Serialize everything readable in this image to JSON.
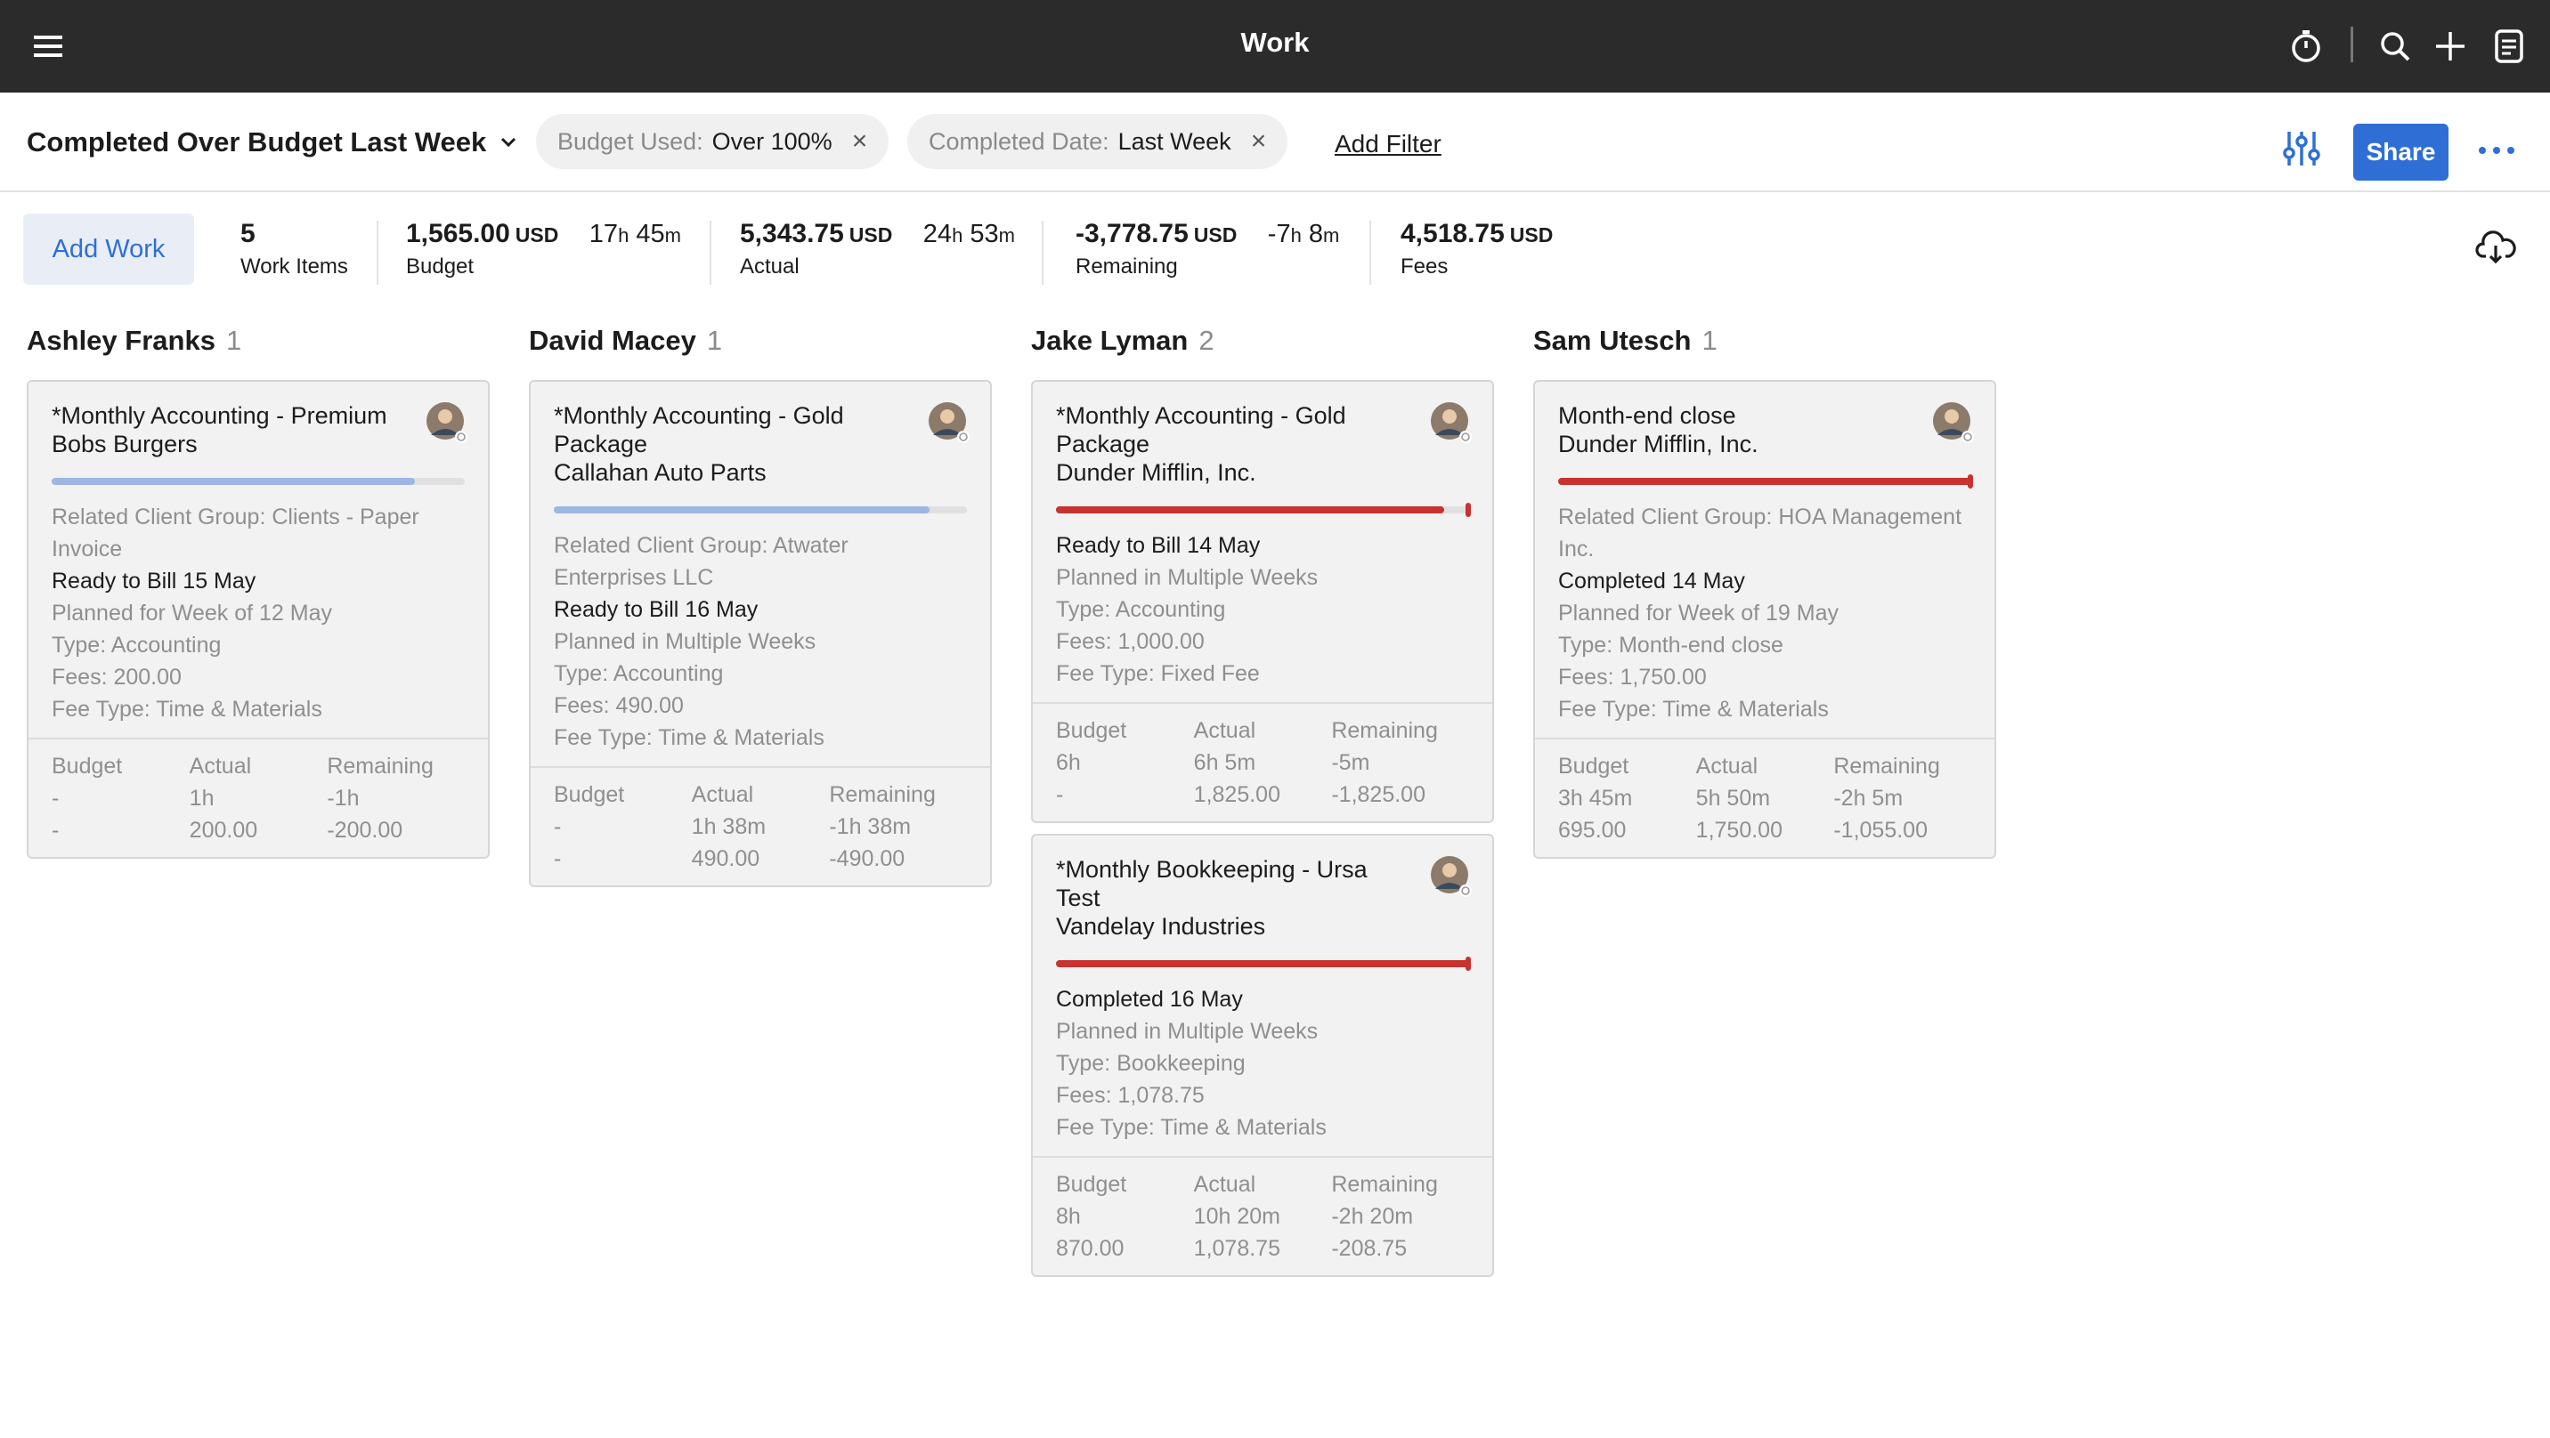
{
  "topbar": {
    "title": "Work",
    "icons": [
      "menu-icon",
      "timer-icon",
      "search-icon",
      "plus-icon",
      "notes-icon"
    ]
  },
  "filters": {
    "view_title": "Completed Over Budget Last Week",
    "chips": [
      {
        "key": "Budget Used:",
        "value": "Over 100%",
        "remove": "×"
      },
      {
        "key": "Completed Date:",
        "value": "Last Week",
        "remove": "×"
      }
    ],
    "add_filter": "Add Filter",
    "share": "Share"
  },
  "summary": {
    "add_work": "Add Work",
    "work_items": {
      "value": "5",
      "label": "Work Items"
    },
    "budget": {
      "value": "1,565.00",
      "currency": "USD",
      "h": "17",
      "m": "45",
      "label": "Budget"
    },
    "actual": {
      "value": "5,343.75",
      "currency": "USD",
      "h": "24",
      "m": "53",
      "label": "Actual"
    },
    "remaining": {
      "value": "-3,778.75",
      "currency": "USD",
      "h": "-7",
      "m": "8",
      "label": "Remaining"
    },
    "fees": {
      "value": "4,518.75",
      "currency": "USD",
      "label": "Fees"
    },
    "unit_h": "h",
    "unit_m": "m"
  },
  "columns": [
    {
      "name": "Ashley Franks",
      "count": "1",
      "cards": [
        {
          "title": "*Monthly Accounting - Premium",
          "client": "Bobs Burgers",
          "bar_color": "#9db6e3",
          "bar_fraction": 0.88,
          "bar_tick": false,
          "lines": [
            {
              "text": "Related Client Group: Clients - Paper Invoice",
              "style": "muted"
            },
            {
              "text": "Ready to Bill 15 May",
              "style": "dark"
            },
            {
              "text": "Planned for Week of 12 May",
              "style": "muted"
            },
            {
              "text": "Type: Accounting",
              "style": "muted"
            },
            {
              "text": "Fees: 200.00",
              "style": "muted"
            },
            {
              "text": "Fee Type: Time & Materials",
              "style": "muted"
            }
          ],
          "foot": [
            [
              "Budget",
              "-",
              "-"
            ],
            [
              "Actual",
              "1h",
              "200.00"
            ],
            [
              "Remaining",
              "-1h",
              "-200.00"
            ]
          ]
        }
      ]
    },
    {
      "name": "David Macey",
      "count": "1",
      "cards": [
        {
          "title": "*Monthly Accounting - Gold Package",
          "client": "Callahan Auto Parts",
          "bar_color": "#9db6e3",
          "bar_fraction": 0.91,
          "bar_tick": false,
          "lines": [
            {
              "text": "Related Client Group: Atwater Enterprises LLC",
              "style": "muted"
            },
            {
              "text": "Ready to Bill 16 May",
              "style": "dark"
            },
            {
              "text": "Planned in Multiple Weeks",
              "style": "muted"
            },
            {
              "text": "Type: Accounting",
              "style": "muted"
            },
            {
              "text": "Fees: 490.00",
              "style": "muted"
            },
            {
              "text": "Fee Type: Time & Materials",
              "style": "muted"
            }
          ],
          "foot": [
            [
              "Budget",
              "-",
              "-"
            ],
            [
              "Actual",
              "1h 38m",
              "490.00"
            ],
            [
              "Remaining",
              "-1h 38m",
              "-490.00"
            ]
          ]
        }
      ]
    },
    {
      "name": "Jake Lyman",
      "count": "2",
      "cards": [
        {
          "title": "*Monthly Accounting - Gold Package",
          "client": "Dunder Mifflin, Inc.",
          "bar_color": "#c8322f",
          "bar_fraction": 0.94,
          "bar_tick": true,
          "lines": [
            {
              "text": "Ready to Bill 14 May",
              "style": "dark"
            },
            {
              "text": "Planned in Multiple Weeks",
              "style": "muted"
            },
            {
              "text": "Type: Accounting",
              "style": "muted"
            },
            {
              "text": "Fees: 1,000.00",
              "style": "muted"
            },
            {
              "text": "Fee Type: Fixed Fee",
              "style": "muted"
            }
          ],
          "foot": [
            [
              "Budget",
              "6h",
              "-"
            ],
            [
              "Actual",
              "6h 5m",
              "1,825.00"
            ],
            [
              "Remaining",
              "-5m",
              "-1,825.00"
            ]
          ]
        },
        {
          "title": "*Monthly Bookkeeping - Ursa Test",
          "client": "Vandelay Industries",
          "bar_color": "#c8322f",
          "bar_fraction": 1.0,
          "bar_tick": true,
          "lines": [
            {
              "text": "Completed 16 May",
              "style": "dark"
            },
            {
              "text": "Planned in Multiple Weeks",
              "style": "muted"
            },
            {
              "text": "Type: Bookkeeping",
              "style": "muted"
            },
            {
              "text": "Fees: 1,078.75",
              "style": "muted"
            },
            {
              "text": "Fee Type: Time & Materials",
              "style": "muted"
            }
          ],
          "foot": [
            [
              "Budget",
              "8h",
              "870.00"
            ],
            [
              "Actual",
              "10h 20m",
              "1,078.75"
            ],
            [
              "Remaining",
              "-2h 20m",
              "-208.75"
            ]
          ]
        }
      ]
    },
    {
      "name": "Sam Utesch",
      "count": "1",
      "cards": [
        {
          "title": "Month-end close",
          "client": "Dunder Mifflin, Inc.",
          "bar_color": "#c8322f",
          "bar_fraction": 1.0,
          "bar_tick": true,
          "lines": [
            {
              "text": "Related Client Group: HOA Management Inc.",
              "style": "muted"
            },
            {
              "text": "Completed 14 May",
              "style": "dark"
            },
            {
              "text": "Planned for Week of 19 May",
              "style": "muted"
            },
            {
              "text": "Type: Month-end close",
              "style": "muted"
            },
            {
              "text": "Fees: 1,750.00",
              "style": "muted"
            },
            {
              "text": "Fee Type: Time & Materials",
              "style": "muted"
            }
          ],
          "foot": [
            [
              "Budget",
              "3h 45m",
              "695.00"
            ],
            [
              "Actual",
              "5h 50m",
              "1,750.00"
            ],
            [
              "Remaining",
              "-2h 5m",
              "-1,055.00"
            ]
          ]
        }
      ]
    }
  ]
}
